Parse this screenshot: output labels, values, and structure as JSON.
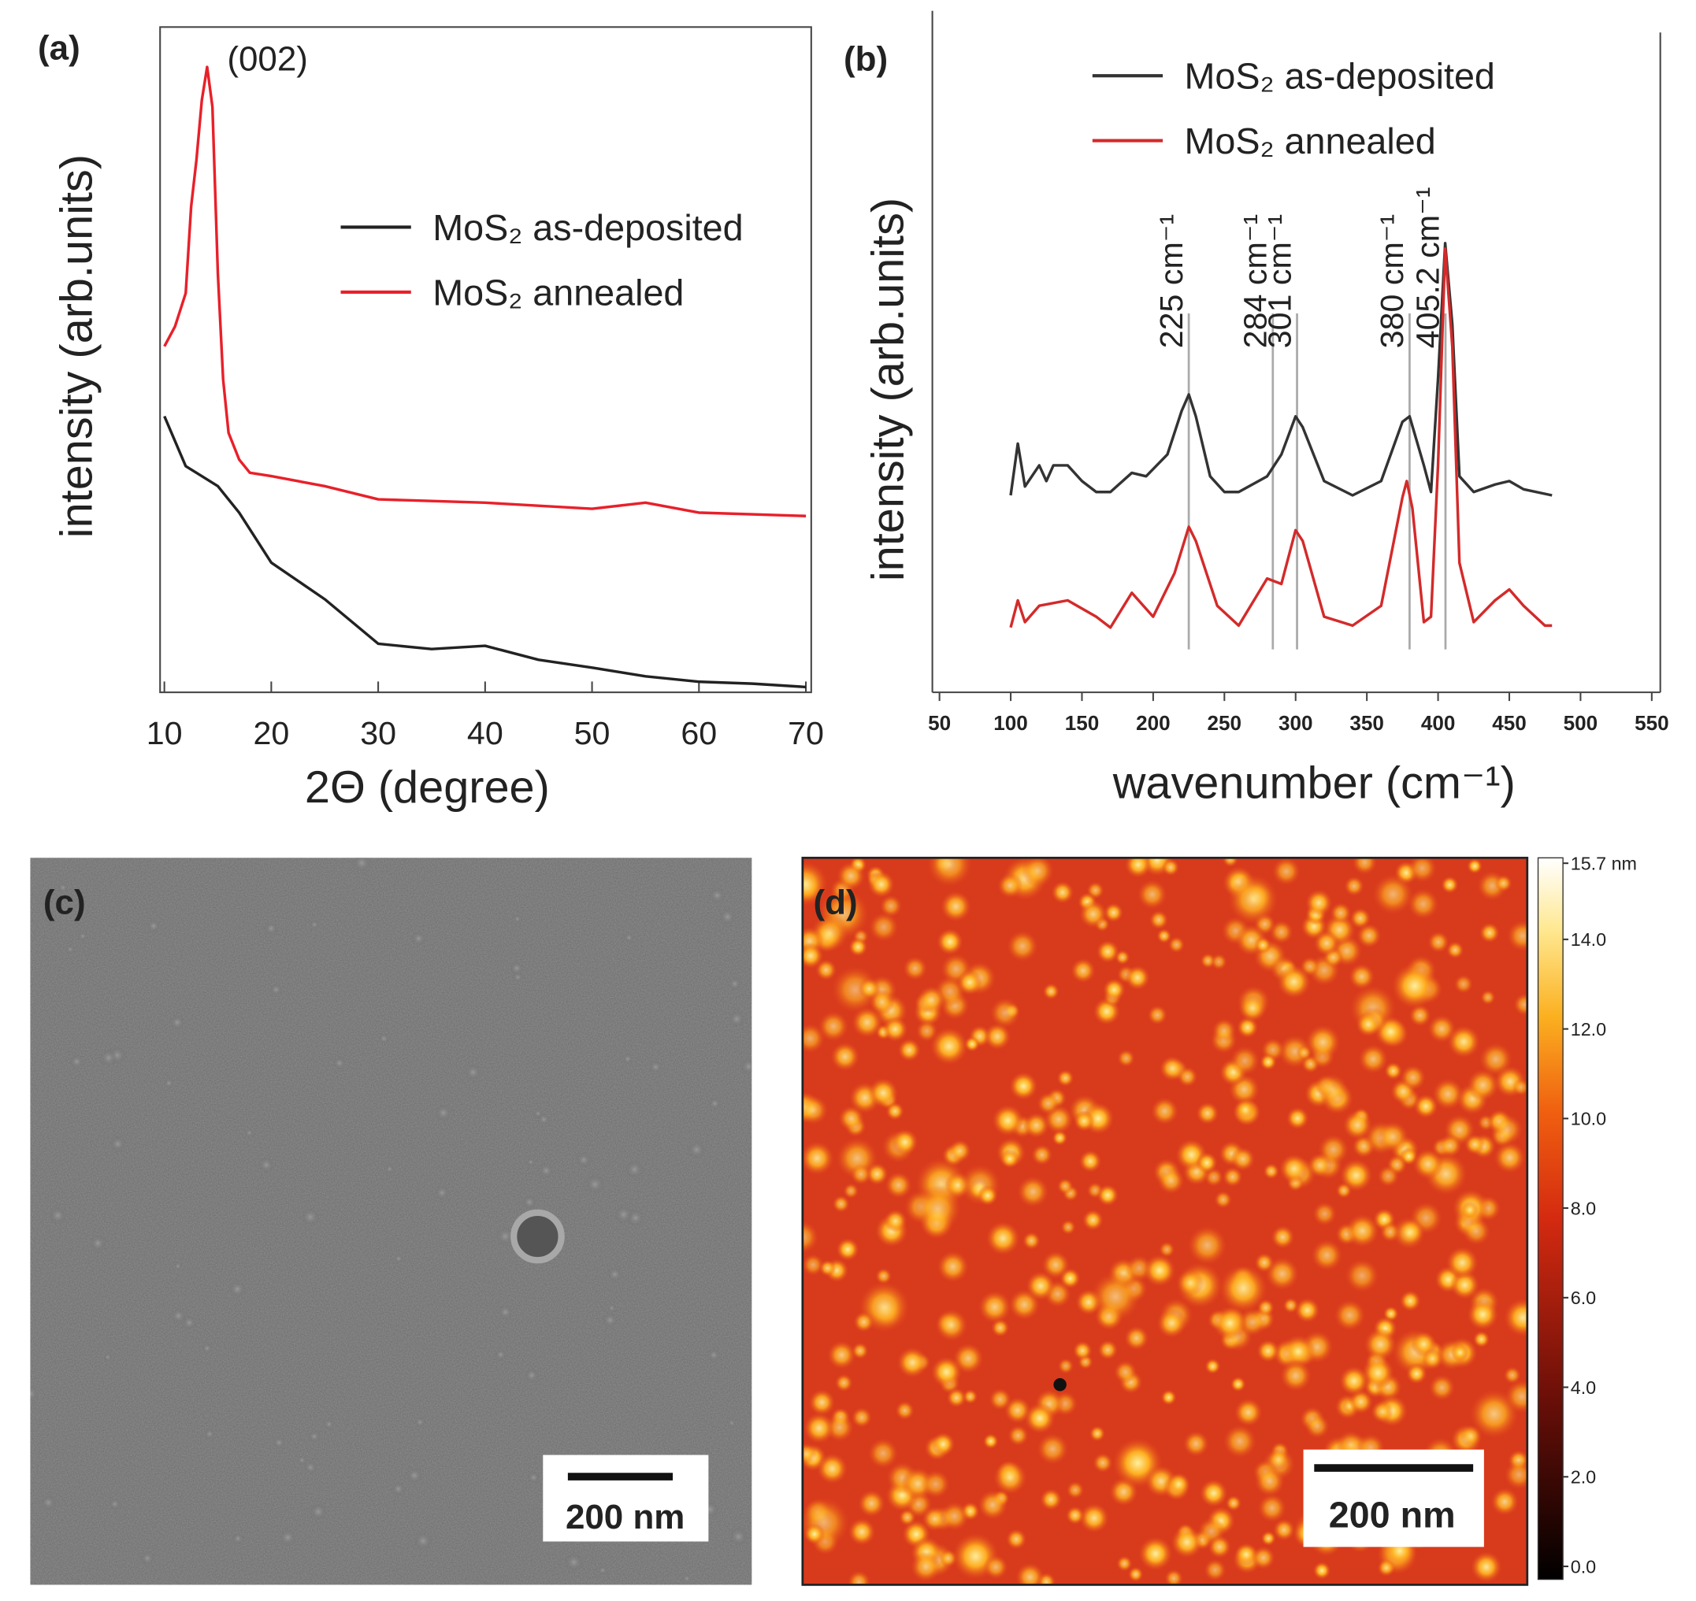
{
  "chart_data": [
    {
      "type": "line",
      "panel_label": "(a)",
      "xlabel": "2Θ (degree)",
      "ylabel": "intensity (arb.units)",
      "xlim": [
        9.6,
        70.5
      ],
      "ylim": [
        0,
        100
      ],
      "xticks": [
        10,
        20,
        30,
        40,
        50,
        60,
        70
      ],
      "legend": "center right",
      "annotations": [
        {
          "text": "(002)"
        }
      ],
      "series": [
        {
          "name": "MoS₂ as-deposited",
          "color": "#222222",
          "x": [
            10,
            12,
            15,
            17,
            20,
            25,
            30,
            35,
            40,
            45,
            50,
            55,
            60,
            65,
            70
          ],
          "values": [
            41.5,
            34,
            31,
            27,
            19.5,
            14,
            7.3,
            6.5,
            7,
            4.9,
            3.7,
            2.4,
            1.6,
            1.3,
            0.8
          ]
        },
        {
          "name": "MoS₂ annealed",
          "color": "#e8202a",
          "x": [
            10,
            11,
            12,
            12.5,
            13,
            13.5,
            14,
            14.5,
            15,
            15.5,
            16,
            17,
            18,
            20,
            25,
            30,
            40,
            50,
            55,
            60,
            70
          ],
          "values": [
            52,
            55,
            60,
            73,
            80,
            89,
            94,
            88,
            63,
            47,
            39,
            35,
            33,
            32.5,
            31,
            29,
            28.5,
            27.6,
            28.5,
            27,
            26.5
          ]
        }
      ]
    },
    {
      "type": "line",
      "panel_label": "(b)",
      "xlabel": "wavenumber (cm⁻¹)",
      "ylabel": "intensity (arb.units)",
      "xlim": [
        45,
        556
      ],
      "ylim": [
        0,
        100
      ],
      "xticks": [
        50,
        100,
        150,
        200,
        250,
        300,
        350,
        400,
        450,
        500,
        550
      ],
      "legend": "upper center",
      "peaks": [
        {
          "x": 225,
          "label": "225 cm⁻¹"
        },
        {
          "x": 284,
          "label": "284 cm⁻¹"
        },
        {
          "x": 301,
          "label": "301 cm⁻¹"
        },
        {
          "x": 380,
          "label": "380 cm⁻¹"
        },
        {
          "x": 405.2,
          "label": "405.2 cm⁻¹"
        }
      ],
      "series": [
        {
          "name": "MoS₂ as-deposited",
          "color": "#333333",
          "x": [
            100,
            105,
            110,
            120,
            125,
            130,
            140,
            150,
            160,
            170,
            185,
            195,
            210,
            220,
            225,
            230,
            240,
            250,
            260,
            280,
            290,
            300,
            305,
            320,
            340,
            360,
            375,
            380,
            390,
            395,
            400,
            405,
            410,
            415,
            425,
            440,
            450,
            460,
            480
          ],
          "values": [
            28.9,
            36.5,
            30.2,
            33.3,
            31.0,
            33.3,
            33.3,
            31.0,
            29.4,
            29.4,
            32.2,
            31.7,
            34.9,
            41.3,
            43.7,
            40.5,
            31.7,
            29.4,
            29.4,
            31.7,
            34.9,
            40.5,
            38.9,
            31.0,
            28.9,
            31.0,
            39.7,
            40.5,
            33.3,
            29.4,
            46.0,
            65.9,
            54.0,
            31.7,
            29.4,
            30.5,
            31.0,
            29.8,
            28.9
          ]
        },
        {
          "name": "MoS₂ annealed",
          "color": "#d42a2a",
          "x": [
            100,
            105,
            110,
            120,
            140,
            160,
            170,
            185,
            200,
            215,
            225,
            230,
            245,
            260,
            280,
            290,
            300,
            305,
            320,
            340,
            360,
            375,
            378,
            382,
            390,
            395,
            400,
            405,
            410,
            415,
            425,
            440,
            450,
            460,
            475,
            480
          ],
          "values": [
            9.5,
            13.5,
            10.3,
            12.7,
            13.5,
            11.1,
            9.5,
            14.6,
            11.1,
            17.5,
            24.3,
            22.2,
            12.7,
            9.8,
            16.7,
            15.9,
            23.8,
            22.2,
            11.1,
            9.8,
            12.7,
            28.6,
            31.0,
            27.0,
            10.3,
            11.1,
            33.3,
            65.1,
            50.8,
            19.0,
            10.3,
            13.5,
            15.1,
            12.7,
            9.8,
            9.8
          ]
        }
      ]
    }
  ],
  "images": [
    {
      "label": "(c)",
      "scale_bar": "200 nm"
    },
    {
      "label": "(d)",
      "scale_bar": "200 nm",
      "colorbar": {
        "lim": [
          0,
          15.7
        ],
        "ticks": [
          {
            "value": 0,
            "label": "0.0"
          },
          {
            "value": 2,
            "label": "2.0"
          },
          {
            "value": 4,
            "label": "4.0"
          },
          {
            "value": 6,
            "label": "6.0"
          },
          {
            "value": 8,
            "label": "8.0"
          },
          {
            "value": 10,
            "label": "10.0"
          },
          {
            "value": 12,
            "label": "12.0"
          },
          {
            "value": 14,
            "label": "14.0"
          },
          {
            "value": 15.7,
            "label": "15.7 nm"
          }
        ]
      }
    }
  ]
}
